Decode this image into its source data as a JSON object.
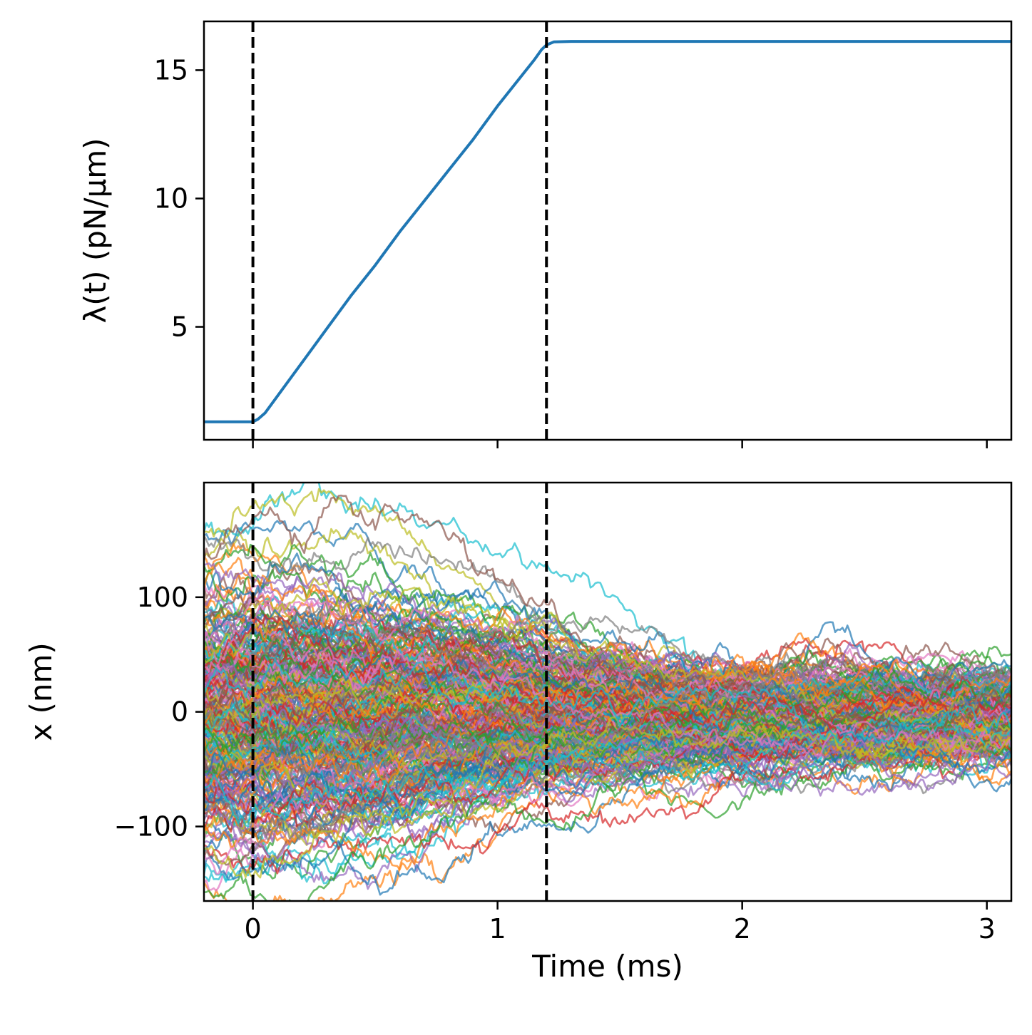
{
  "chart_data": [
    {
      "type": "line",
      "panel": "top",
      "ylabel": "λ(t) (pN/μm)",
      "xlabel": "",
      "xlim": [
        -0.2,
        3.1
      ],
      "ylim": [
        0.6,
        16.9
      ],
      "xticks": [
        0,
        1,
        2,
        3
      ],
      "yticks": [
        5,
        10,
        15
      ],
      "ytick_labels": [
        "5",
        "10",
        "15"
      ],
      "show_xtick_labels": false,
      "vlines": [
        0,
        1.2
      ],
      "series": [
        {
          "name": "λ(t)",
          "color": "#1f77b4",
          "x": [
            -0.2,
            -0.05,
            0.0,
            0.02,
            0.05,
            0.1,
            0.2,
            0.3,
            0.4,
            0.5,
            0.6,
            0.7,
            0.8,
            0.9,
            1.0,
            1.1,
            1.15,
            1.18,
            1.2,
            1.23,
            1.3,
            1.5,
            2.0,
            2.5,
            3.1
          ],
          "y": [
            1.3,
            1.3,
            1.3,
            1.4,
            1.65,
            2.3,
            3.6,
            4.9,
            6.2,
            7.4,
            8.7,
            9.9,
            11.1,
            12.3,
            13.6,
            14.8,
            15.4,
            15.8,
            15.98,
            16.1,
            16.12,
            16.12,
            16.12,
            16.12,
            16.12
          ]
        }
      ]
    },
    {
      "type": "line",
      "panel": "bottom",
      "ylabel": "x (nm)",
      "xlabel": "Time (ms)",
      "xlim": [
        -0.2,
        3.1
      ],
      "ylim": [
        -165,
        200
      ],
      "xticks": [
        0,
        1,
        2,
        3
      ],
      "xtick_labels": [
        "0",
        "1",
        "2",
        "3"
      ],
      "yticks": [
        -100,
        0,
        100
      ],
      "ytick_labels": [
        "−100",
        "0",
        "100"
      ],
      "vlines": [
        0,
        1.2
      ],
      "trajectory_count": 300,
      "initial_spread_nm": [
        -140,
        175
      ],
      "final_spread_nm": [
        -60,
        60
      ],
      "colors": [
        "#1f77b4",
        "#ff7f0e",
        "#2ca02c",
        "#d62728",
        "#9467bd",
        "#8c564b",
        "#e377c2",
        "#7f7f7f",
        "#bcbd22",
        "#17becf"
      ]
    }
  ]
}
